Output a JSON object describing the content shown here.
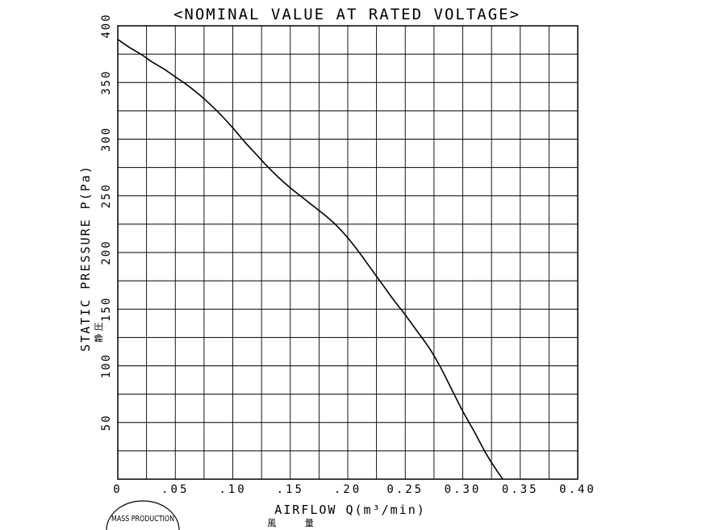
{
  "chart_data": {
    "type": "line",
    "title": "<NOMINAL VALUE AT RATED VOLTAGE>",
    "xlabel": "AIRFLOW Q(m³/min)",
    "xlabel_jp": "風 量",
    "ylabel": "STATIC PRESSURE P(Pa)",
    "ylabel_jp": "静 圧",
    "xlim": [
      0,
      0.4
    ],
    "ylim": [
      0,
      400
    ],
    "x_ticks": [
      {
        "value": 0,
        "label": "0"
      },
      {
        "value": 0.05,
        "label": ".05"
      },
      {
        "value": 0.1,
        "label": ".10"
      },
      {
        "value": 0.15,
        "label": ".15"
      },
      {
        "value": 0.2,
        "label": ".20"
      },
      {
        "value": 0.25,
        "label": "0.25"
      },
      {
        "value": 0.3,
        "label": "0.30"
      },
      {
        "value": 0.35,
        "label": "0.35"
      },
      {
        "value": 0.4,
        "label": "0.40"
      }
    ],
    "y_ticks": [
      {
        "value": 50,
        "label": "50"
      },
      {
        "value": 100,
        "label": "100"
      },
      {
        "value": 150,
        "label": "150"
      },
      {
        "value": 200,
        "label": "200"
      },
      {
        "value": 250,
        "label": "250"
      },
      {
        "value": 300,
        "label": "300"
      },
      {
        "value": 350,
        "label": "350"
      },
      {
        "value": 400,
        "label": "400"
      }
    ],
    "grid": true,
    "grid_x_step": 0.025,
    "grid_y_step": 25,
    "series": [
      {
        "color": "#000000",
        "points": [
          [
            0.0,
            388
          ],
          [
            0.01,
            381
          ],
          [
            0.02,
            375
          ],
          [
            0.03,
            368
          ],
          [
            0.04,
            362
          ],
          [
            0.05,
            355
          ],
          [
            0.06,
            348
          ],
          [
            0.07,
            340
          ],
          [
            0.08,
            331
          ],
          [
            0.09,
            321
          ],
          [
            0.1,
            310
          ],
          [
            0.11,
            298
          ],
          [
            0.12,
            287
          ],
          [
            0.13,
            276
          ],
          [
            0.14,
            266
          ],
          [
            0.15,
            257
          ],
          [
            0.16,
            249
          ],
          [
            0.17,
            241
          ],
          [
            0.18,
            233
          ],
          [
            0.19,
            224
          ],
          [
            0.2,
            213
          ],
          [
            0.21,
            200
          ],
          [
            0.22,
            186
          ],
          [
            0.23,
            172
          ],
          [
            0.24,
            158
          ],
          [
            0.25,
            145
          ],
          [
            0.26,
            131
          ],
          [
            0.27,
            117
          ],
          [
            0.28,
            100
          ],
          [
            0.29,
            80
          ],
          [
            0.3,
            60
          ],
          [
            0.31,
            42
          ],
          [
            0.32,
            23
          ],
          [
            0.33,
            7
          ],
          [
            0.335,
            0
          ]
        ]
      }
    ]
  },
  "stamp": {
    "text": "MASS PRODUCTION"
  }
}
